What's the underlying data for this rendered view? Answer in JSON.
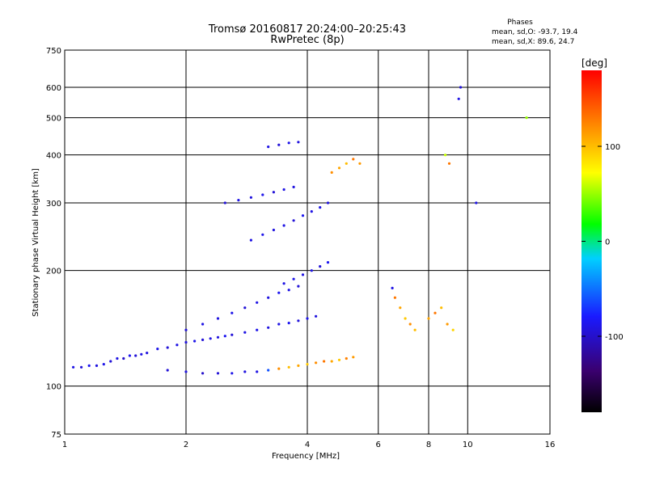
{
  "chart_data": {
    "type": "scatter",
    "title": "Tromsø 20160817 20:24:00–20:25:43",
    "subtitle": "RwPretec (8p)",
    "xlabel": "Frequency [MHz]",
    "ylabel": "Stationary phase Virtual Height [km]",
    "x_scale": "log",
    "y_scale": "log",
    "xlim": [
      1,
      16
    ],
    "ylim": [
      75,
      750
    ],
    "x_ticks": [
      1,
      2,
      4,
      6,
      8,
      10,
      16
    ],
    "y_ticks": [
      75,
      100,
      200,
      300,
      400,
      500,
      600,
      750
    ],
    "grid": true,
    "stats": {
      "heading": "Phases",
      "o_line": "mean, sd,O: -93.7, 19.4",
      "x_line": "mean, sd,X:  89.6, 24.7"
    },
    "colorbar": {
      "label": "[deg]",
      "min": -180,
      "max": 180,
      "ticks": [
        100,
        0,
        -100
      ],
      "colors": [
        "#000000",
        "#3a006e",
        "#1a1aff",
        "#00d0ff",
        "#00ff00",
        "#ffff00",
        "#ff8000",
        "#ff0000"
      ]
    },
    "series": [
      {
        "comment": "Frequency (MHz), virtual height (km), phase (deg)",
        "points_fxhp": [
          [
            1.05,
            112,
            -90
          ],
          [
            1.1,
            112,
            -95
          ],
          [
            1.15,
            113,
            -85
          ],
          [
            1.2,
            113,
            -92
          ],
          [
            1.25,
            114,
            -88
          ],
          [
            1.3,
            116,
            -95
          ],
          [
            1.35,
            118,
            -90
          ],
          [
            1.4,
            118,
            -100
          ],
          [
            1.45,
            120,
            -85
          ],
          [
            1.5,
            120,
            -95
          ],
          [
            1.55,
            121,
            -90
          ],
          [
            1.6,
            122,
            -92
          ],
          [
            1.7,
            125,
            -88
          ],
          [
            1.8,
            126,
            -95
          ],
          [
            1.9,
            128,
            -90
          ],
          [
            2.0,
            130,
            -93
          ],
          [
            2.1,
            131,
            -88
          ],
          [
            2.2,
            132,
            -95
          ],
          [
            2.3,
            133,
            -90
          ],
          [
            2.4,
            134,
            -92
          ],
          [
            2.5,
            135,
            -85
          ],
          [
            2.6,
            136,
            -95
          ],
          [
            2.8,
            138,
            -90
          ],
          [
            3.0,
            140,
            -88
          ],
          [
            3.2,
            142,
            -92
          ],
          [
            3.4,
            145,
            -90
          ],
          [
            3.6,
            146,
            -85
          ],
          [
            3.8,
            148,
            -93
          ],
          [
            4.0,
            150,
            -88
          ],
          [
            4.2,
            152,
            -92
          ],
          [
            1.8,
            110,
            -95
          ],
          [
            2.0,
            109,
            -92
          ],
          [
            2.2,
            108,
            -100
          ],
          [
            2.4,
            108,
            -95
          ],
          [
            2.6,
            108,
            -88
          ],
          [
            2.8,
            109,
            -92
          ],
          [
            3.0,
            109,
            -90
          ],
          [
            3.2,
            110,
            -60
          ],
          [
            3.4,
            111,
            120
          ],
          [
            3.6,
            112,
            100
          ],
          [
            3.8,
            113,
            110
          ],
          [
            4.0,
            114,
            95
          ],
          [
            4.2,
            115,
            120
          ],
          [
            4.4,
            116,
            130
          ],
          [
            4.6,
            116,
            110
          ],
          [
            4.8,
            117,
            95
          ],
          [
            5.0,
            118,
            125
          ],
          [
            5.2,
            119,
            115
          ],
          [
            2.0,
            140,
            -95
          ],
          [
            2.2,
            145,
            -90
          ],
          [
            2.4,
            150,
            -92
          ],
          [
            2.6,
            155,
            -88
          ],
          [
            2.8,
            160,
            -95
          ],
          [
            3.0,
            165,
            -90
          ],
          [
            3.2,
            170,
            -92
          ],
          [
            3.4,
            175,
            -85
          ],
          [
            3.6,
            178,
            -90
          ],
          [
            3.8,
            182,
            -95
          ],
          [
            3.5,
            185,
            -90
          ],
          [
            3.7,
            190,
            -88
          ],
          [
            3.9,
            195,
            -92
          ],
          [
            4.1,
            200,
            -90
          ],
          [
            4.3,
            205,
            -95
          ],
          [
            4.5,
            210,
            -85
          ],
          [
            2.5,
            300,
            -95
          ],
          [
            2.7,
            305,
            -90
          ],
          [
            2.9,
            310,
            -92
          ],
          [
            3.1,
            315,
            -88
          ],
          [
            3.3,
            320,
            -95
          ],
          [
            3.5,
            325,
            -90
          ],
          [
            3.7,
            330,
            -92
          ],
          [
            2.9,
            240,
            -90
          ],
          [
            3.1,
            248,
            -88
          ],
          [
            3.3,
            255,
            -92
          ],
          [
            3.5,
            262,
            -90
          ],
          [
            3.7,
            270,
            -95
          ],
          [
            3.9,
            278,
            -85
          ],
          [
            4.1,
            285,
            -90
          ],
          [
            4.3,
            292,
            -88
          ],
          [
            4.5,
            300,
            -92
          ],
          [
            3.2,
            420,
            -90
          ],
          [
            3.4,
            425,
            -95
          ],
          [
            3.6,
            430,
            -88
          ],
          [
            3.8,
            432,
            -92
          ],
          [
            4.6,
            360,
            120
          ],
          [
            4.8,
            370,
            110
          ],
          [
            5.0,
            380,
            100
          ],
          [
            5.2,
            390,
            130
          ],
          [
            5.4,
            380,
            115
          ],
          [
            6.5,
            180,
            -90
          ],
          [
            6.6,
            170,
            130
          ],
          [
            6.8,
            160,
            110
          ],
          [
            7.0,
            150,
            95
          ],
          [
            7.2,
            145,
            120
          ],
          [
            7.4,
            140,
            100
          ],
          [
            8.0,
            150,
            110
          ],
          [
            8.3,
            155,
            130
          ],
          [
            8.6,
            160,
            100
          ],
          [
            8.9,
            145,
            115
          ],
          [
            9.2,
            140,
            90
          ],
          [
            9.5,
            560,
            -90
          ],
          [
            9.6,
            600,
            -95
          ],
          [
            8.8,
            400,
            60
          ],
          [
            9.0,
            380,
            130
          ],
          [
            10.5,
            300,
            -90
          ],
          [
            14,
            500,
            50
          ]
        ]
      }
    ]
  }
}
